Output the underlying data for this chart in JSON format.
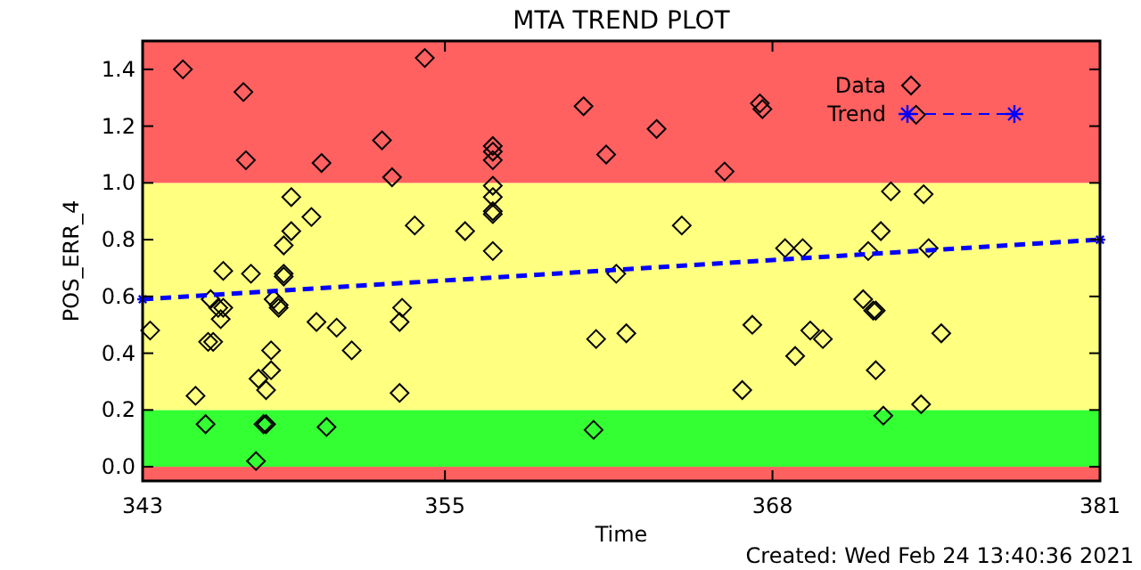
{
  "chart_data": {
    "type": "scatter",
    "title": "MTA TREND PLOT",
    "xlabel": "Time",
    "ylabel": "POS_ERR_4",
    "xlim": [
      343,
      381
    ],
    "xticks": [
      343,
      355,
      368,
      381
    ],
    "ylim": [
      -0.05,
      1.5
    ],
    "yticks": [
      {
        "value": 0,
        "label": "0.0"
      },
      {
        "value": 0.2,
        "label": "0.2"
      },
      {
        "value": 0.4,
        "label": "0.4"
      },
      {
        "value": 0.6,
        "label": "0.6"
      },
      {
        "value": 0.8,
        "label": "0.8"
      },
      {
        "value": 1.0,
        "label": "1.0"
      },
      {
        "value": 1.2,
        "label": "1.2"
      },
      {
        "value": 1.4,
        "label": "1.4"
      }
    ],
    "grid": false,
    "legend": "top right",
    "bands": [
      {
        "axis": "y",
        "from": -0.05,
        "to": 0,
        "color": "#ff6060"
      },
      {
        "axis": "y",
        "from": 0,
        "to": 0.2,
        "color": "#33ff33"
      },
      {
        "axis": "y",
        "from": 0.2,
        "to": 1.0,
        "color": "#ffff80"
      },
      {
        "axis": "y",
        "from": 1.0,
        "to": 1.5,
        "color": "#ff6060"
      }
    ],
    "annotations": [
      "Created: Wed Feb 24 13:40:36 2021"
    ],
    "series": [
      {
        "name": "Data",
        "marker": "diamond",
        "color": "#000000",
        "x": [
          343.3,
          344.6,
          345.1,
          345.5,
          345.6,
          345.8,
          345.7,
          346.0,
          346.1,
          346.2,
          346.2,
          347.0,
          347.1,
          347.3,
          347.5,
          347.6,
          347.8,
          347.9,
          347.9,
          348.1,
          348.1,
          348.2,
          348.4,
          348.4,
          348.6,
          348.6,
          348.6,
          348.9,
          348.9,
          349.7,
          349.9,
          350.1,
          350.3,
          350.7,
          351.3,
          352.5,
          352.9,
          353.2,
          353.3,
          353.2,
          353.8,
          354.2,
          355.8,
          360.5,
          363.4,
          361.4,
          366.1,
          367.5,
          367.6,
          356.9,
          356.9,
          356.9,
          356.9,
          356.9,
          356.9,
          356.9,
          356.9,
          361.8,
          361.0,
          362.2,
          360.9,
          364.4,
          367.2,
          366.8,
          368.5,
          373.7,
          372.7,
          374.0,
          372.3,
          369.2,
          371.8,
          374.2,
          371.6,
          372.0,
          372.1,
          369.5,
          370.0,
          374.7,
          368.9,
          372.1,
          373.9,
          372.4
        ],
        "values": [
          0.48,
          1.4,
          0.25,
          0.15,
          0.44,
          0.44,
          0.59,
          0.56,
          0.52,
          0.56,
          0.69,
          1.32,
          1.08,
          0.68,
          0.02,
          0.31,
          0.15,
          0.15,
          0.27,
          0.34,
          0.41,
          0.59,
          0.57,
          0.56,
          0.67,
          0.68,
          0.78,
          0.83,
          0.95,
          0.88,
          0.51,
          1.07,
          0.14,
          0.49,
          0.41,
          1.15,
          1.02,
          0.51,
          0.56,
          0.26,
          0.85,
          1.44,
          0.83,
          1.27,
          1.19,
          1.1,
          1.04,
          1.28,
          1.26,
          1.13,
          1.11,
          1.08,
          0.99,
          0.95,
          0.9,
          0.89,
          0.76,
          0.68,
          0.45,
          0.47,
          0.13,
          0.85,
          0.5,
          0.27,
          0.77,
          1.24,
          0.97,
          0.96,
          0.83,
          0.77,
          0.76,
          0.77,
          0.59,
          0.55,
          0.55,
          0.48,
          0.45,
          0.47,
          0.39,
          0.34,
          0.22,
          0.18
        ]
      },
      {
        "name": "Trend",
        "type": "line",
        "marker": "cross",
        "line_style": "dashed",
        "color": "#0000ff",
        "x": [
          343,
          381
        ],
        "values": [
          0.59,
          0.8
        ]
      }
    ]
  }
}
